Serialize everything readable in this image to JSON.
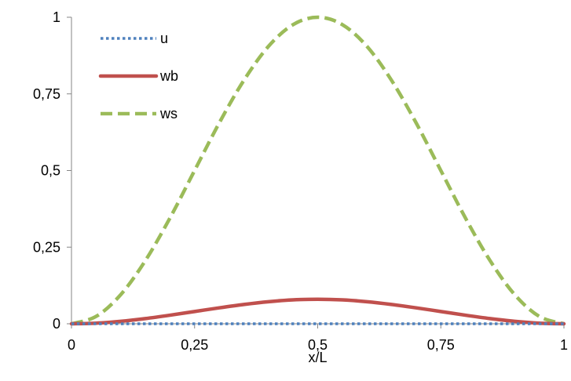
{
  "chart_data": {
    "type": "line",
    "title": "",
    "xlabel": "x/L",
    "ylabel": "",
    "xlim": [
      0,
      1
    ],
    "ylim": [
      0,
      1
    ],
    "grid": false,
    "legend_position": "top-left",
    "x_ticks": [
      0,
      0.25,
      0.5,
      0.75,
      1
    ],
    "x_tick_labels": [
      "0",
      "0,25",
      "0,5",
      "0,75",
      "1"
    ],
    "y_ticks": [
      0,
      0.25,
      0.5,
      0.75,
      1
    ],
    "y_tick_labels": [
      "0",
      "0,25",
      "0,5",
      "0,75",
      "1"
    ],
    "x": [
      0,
      0.05,
      0.1,
      0.15,
      0.2,
      0.25,
      0.3,
      0.35,
      0.4,
      0.45,
      0.5,
      0.55,
      0.6,
      0.65,
      0.7,
      0.75,
      0.8,
      0.85,
      0.9,
      0.95,
      1
    ],
    "series": [
      {
        "name": "u",
        "color": "#4f81bd",
        "dash": "dotted",
        "values": [
          0,
          0,
          0,
          0,
          0,
          0,
          0,
          0,
          0,
          0,
          0,
          0,
          0,
          0,
          0,
          0,
          0,
          0,
          0,
          0,
          0
        ]
      },
      {
        "name": "wb",
        "color": "#c0504d",
        "dash": "solid",
        "values": [
          0,
          0.002,
          0.008,
          0.017,
          0.028,
          0.04,
          0.052,
          0.063,
          0.072,
          0.078,
          0.08,
          0.078,
          0.072,
          0.063,
          0.052,
          0.04,
          0.028,
          0.017,
          0.008,
          0.002,
          0
        ]
      },
      {
        "name": "ws",
        "color": "#9bbb59",
        "dash": "dashed",
        "values": [
          0,
          0.024,
          0.095,
          0.206,
          0.345,
          0.5,
          0.655,
          0.794,
          0.905,
          0.976,
          1,
          0.976,
          0.905,
          0.794,
          0.655,
          0.5,
          0.345,
          0.206,
          0.095,
          0.024,
          0
        ]
      }
    ]
  }
}
